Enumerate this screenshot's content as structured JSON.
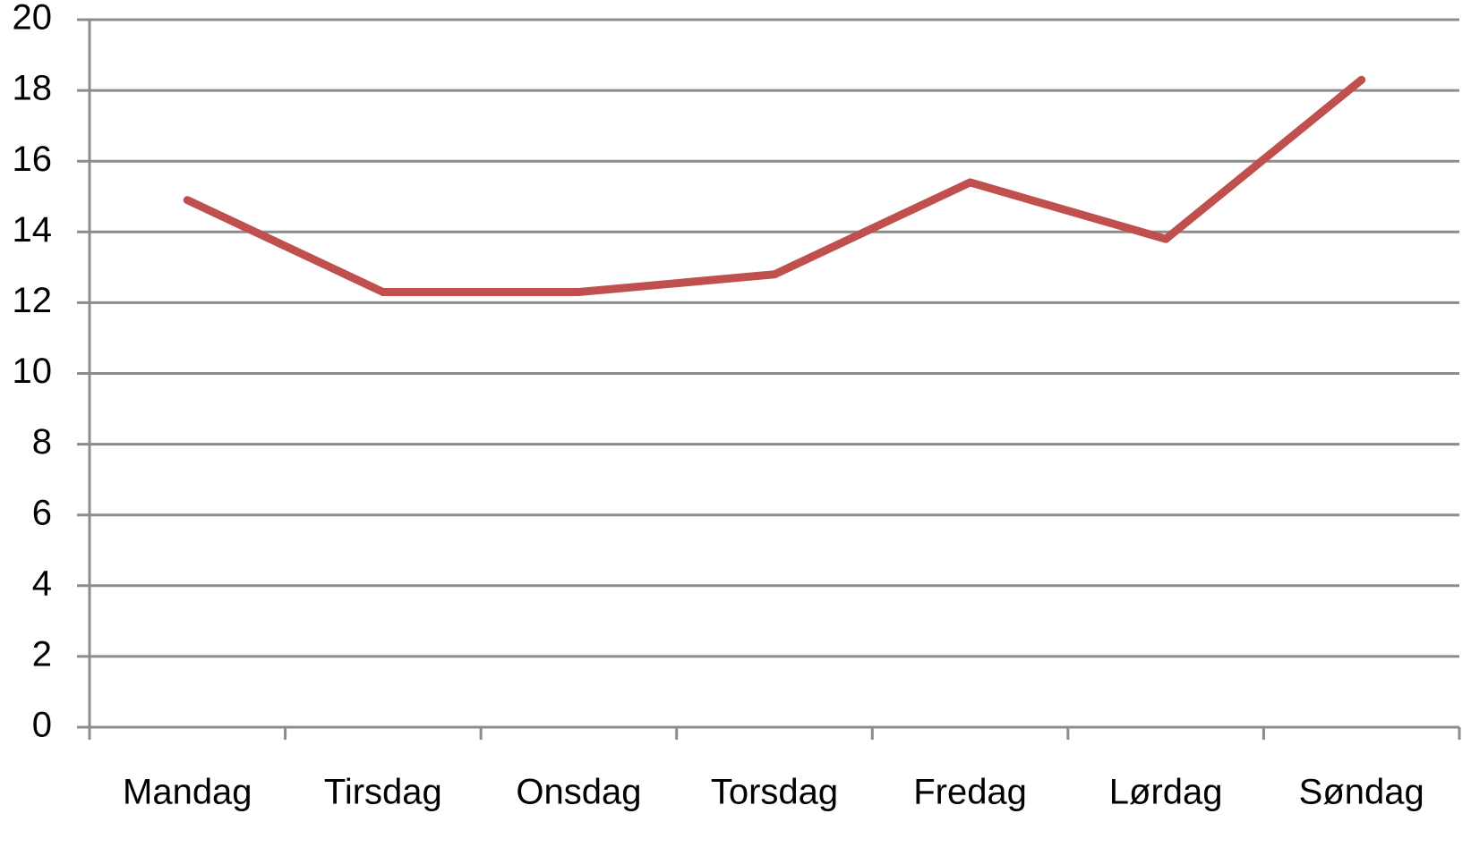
{
  "chart_data": {
    "type": "line",
    "categories": [
      "Mandag",
      "Tirsdag",
      "Onsdag",
      "Torsdag",
      "Fredag",
      "Lørdag",
      "Søndag"
    ],
    "series": [
      {
        "color": "#c0504d",
        "values": [
          14.9,
          12.3,
          12.3,
          12.8,
          15.4,
          13.8,
          18.3
        ]
      }
    ],
    "ylim": [
      0,
      20
    ],
    "yticks": [
      0,
      2,
      4,
      6,
      8,
      10,
      12,
      14,
      16,
      18,
      20
    ],
    "grid": true
  }
}
